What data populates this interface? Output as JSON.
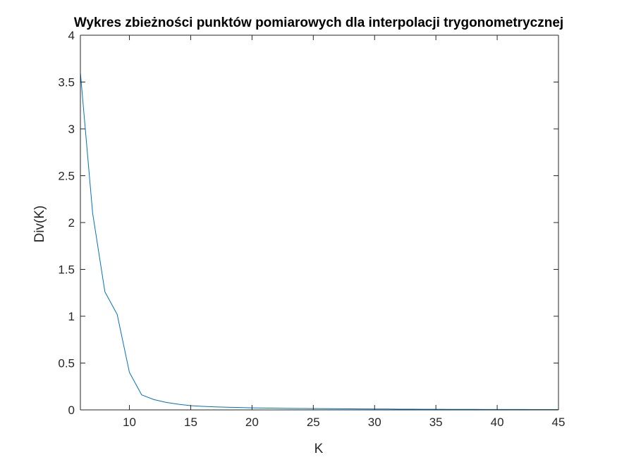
{
  "chart_data": {
    "type": "line",
    "title": "Wykres zbieżności punktów pomiarowych dla interpolacji trygonometrycznej",
    "xlabel": "K",
    "ylabel": "Div(K)",
    "xlim": [
      6,
      45
    ],
    "ylim": [
      0,
      4
    ],
    "xticks": [
      10,
      15,
      20,
      25,
      30,
      35,
      40,
      45
    ],
    "yticks": [
      0,
      0.5,
      1,
      1.5,
      2,
      2.5,
      3,
      3.5,
      4
    ],
    "xtick_labels": [
      "10",
      "15",
      "20",
      "25",
      "30",
      "35",
      "40",
      "45"
    ],
    "ytick_labels": [
      "0",
      "0.5",
      "1",
      "1.5",
      "2",
      "2.5",
      "3",
      "3.5",
      "4"
    ],
    "grid": false,
    "box": true,
    "line_color": "#0072BD",
    "axis_color": "#262626",
    "series": [
      {
        "x": [
          6,
          7,
          8,
          9,
          10,
          11,
          12,
          13,
          14,
          15,
          16,
          17,
          18,
          19,
          20,
          21,
          22,
          23,
          24,
          25,
          26,
          27,
          28,
          29,
          30,
          31,
          32,
          33,
          34,
          35,
          36,
          37,
          38,
          39,
          40,
          41,
          42,
          43,
          44,
          45
        ],
        "values": [
          3.6,
          2.1,
          1.26,
          1.02,
          0.4,
          0.16,
          0.11,
          0.08,
          0.06,
          0.045,
          0.038,
          0.032,
          0.028,
          0.025,
          0.022,
          0.02,
          0.018,
          0.016,
          0.015,
          0.014,
          0.013,
          0.012,
          0.011,
          0.01,
          0.009,
          0.009,
          0.008,
          0.008,
          0.007,
          0.007,
          0.006,
          0.006,
          0.006,
          0.005,
          0.005,
          0.005,
          0.005,
          0.004,
          0.004,
          0.004
        ]
      }
    ]
  }
}
